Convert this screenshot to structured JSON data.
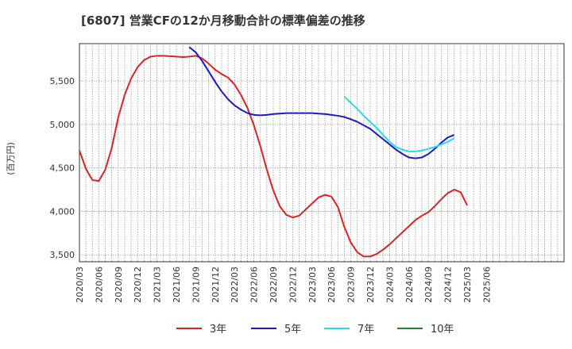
{
  "chart_data": {
    "type": "line",
    "title": "[6807]  営業CFの12か月移動合計の標準偏差の推移",
    "ylabel": "(百万円)",
    "xlabel": "",
    "ylim": [
      3420,
      5930
    ],
    "yticks": [
      3500,
      4000,
      4500,
      5000,
      5500
    ],
    "ytick_labels": [
      "3,500",
      "4,000",
      "4,500",
      "5,000",
      "5,500"
    ],
    "xticks": [
      "2020/03",
      "2020/06",
      "2020/09",
      "2020/12",
      "2021/03",
      "2021/06",
      "2021/09",
      "2021/12",
      "2022/03",
      "2022/06",
      "2022/09",
      "2022/12",
      "2023/03",
      "2023/06",
      "2023/09",
      "2023/12",
      "2024/03",
      "2024/06",
      "2024/09",
      "2024/12",
      "2025/03",
      "2025/06"
    ],
    "grid": true,
    "legend_position": "bottom",
    "series": [
      {
        "name": "3年",
        "color": "#dd2222",
        "start_month": "2020/03",
        "values": [
          4700,
          4490,
          4360,
          4350,
          4480,
          4730,
          5080,
          5340,
          5530,
          5660,
          5740,
          5780,
          5790,
          5790,
          5785,
          5780,
          5775,
          5780,
          5790,
          5760,
          5700,
          5630,
          5580,
          5540,
          5460,
          5340,
          5190,
          4990,
          4750,
          4480,
          4240,
          4060,
          3960,
          3930,
          3950,
          4020,
          4090,
          4160,
          4190,
          4170,
          4050,
          3820,
          3640,
          3530,
          3480,
          3480,
          3510,
          3560,
          3620,
          3690,
          3760,
          3830,
          3900,
          3950,
          3990,
          4060,
          4140,
          4210,
          4250,
          4220,
          4070
        ]
      },
      {
        "name": "5年",
        "color": "#1a1acc",
        "start_month": "2021/08",
        "values": [
          5890,
          5830,
          5730,
          5610,
          5490,
          5380,
          5290,
          5220,
          5170,
          5130,
          5110,
          5105,
          5110,
          5120,
          5125,
          5130,
          5130,
          5130,
          5130,
          5130,
          5125,
          5120,
          5110,
          5100,
          5085,
          5060,
          5030,
          4990,
          4950,
          4890,
          4830,
          4770,
          4710,
          4660,
          4620,
          4610,
          4620,
          4660,
          4720,
          4790,
          4850,
          4880
        ]
      },
      {
        "name": "7年",
        "color": "#22ddee",
        "start_month": "2023/08",
        "values": [
          5320,
          5250,
          5180,
          5100,
          5030,
          4960,
          4880,
          4800,
          4740,
          4710,
          4690,
          4690,
          4700,
          4720,
          4740,
          4770,
          4800,
          4840
        ]
      },
      {
        "name": "10年",
        "color": "#228822",
        "start_month": "",
        "values": []
      }
    ]
  }
}
